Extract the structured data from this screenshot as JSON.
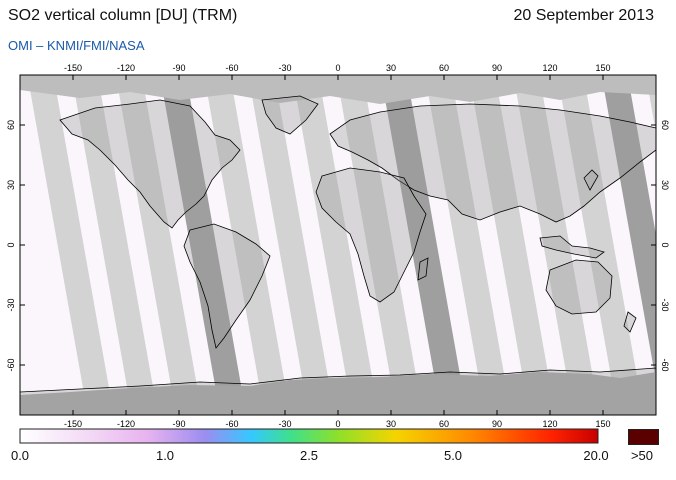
{
  "header": {
    "title": "SO2 vertical column [DU] (TRM)",
    "date": "20 September 2013",
    "credit": "OMI  –  KNMI/FMI/NASA"
  },
  "map": {
    "projection": "equirectangular",
    "lon_ticks": [
      "-150",
      "-120",
      "-90",
      "-60",
      "-30",
      "0",
      "30",
      "60",
      "90",
      "120",
      "150"
    ],
    "lat_ticks": [
      "60",
      "30",
      "0",
      "-30",
      "-60"
    ],
    "land_color": "#9a9a9a",
    "swath_color": "#cfcfcf",
    "gap_color": "#ffffff",
    "coast_color": "#000000"
  },
  "colorbar": {
    "labels": [
      "0.0",
      "1.0",
      "2.5",
      "5.0",
      "20.0",
      ">50"
    ],
    "overflow_color": "#5a0000"
  }
}
